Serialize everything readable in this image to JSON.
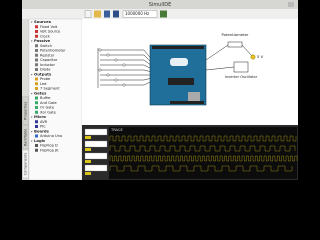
{
  "window": {
    "title": "SimulIDE"
  },
  "toolbar": {
    "frequency": "1000000 Hz"
  },
  "side_tabs": [
    "Components",
    "RamTable",
    "Properties"
  ],
  "components": [
    {
      "group": "Sources",
      "items": [
        "Fixed Volt",
        "Volt Source",
        "Clock"
      ]
    },
    {
      "group": "Passive",
      "items": [
        "Switch",
        "Potentiometer",
        "Resistor",
        "Capacitor",
        "Inductor",
        "Diode"
      ]
    },
    {
      "group": "Outputs",
      "items": [
        "Probe",
        "Led",
        "7 Segment"
      ]
    },
    {
      "group": "Gates",
      "items": [
        "Buffer",
        "And Gate",
        "Or Gate",
        "Xor Gate"
      ]
    },
    {
      "group": "Micro",
      "items": [
        "AVR",
        "PIC"
      ]
    },
    {
      "group": "Boards",
      "items": [
        "Arduino Uno"
      ]
    },
    {
      "group": "Logic",
      "items": [
        "FlipFlop D",
        "FlipFlop JK"
      ]
    }
  ],
  "canvas": {
    "potentiometer": "Potentiometer",
    "supply": "5 V",
    "oscillator": "Inverter Oscillator"
  },
  "plotter": {
    "trace": "TRACE"
  }
}
